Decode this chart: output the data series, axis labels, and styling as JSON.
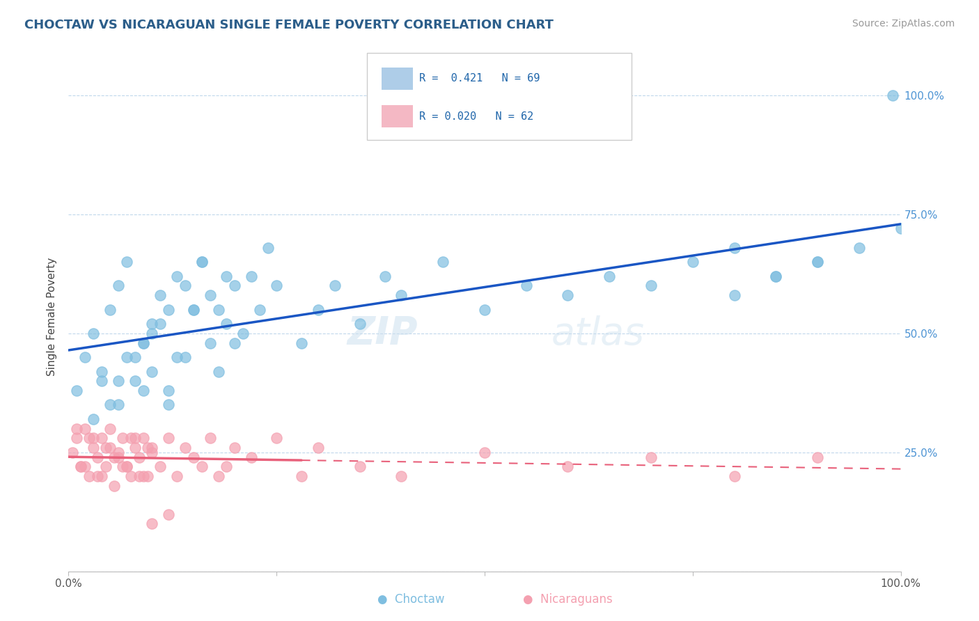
{
  "title": "CHOCTAW VS NICARAGUAN SINGLE FEMALE POVERTY CORRELATION CHART",
  "source": "Source: ZipAtlas.com",
  "ylabel": "Single Female Poverty",
  "y_tick_labels_right": [
    "25.0%",
    "50.0%",
    "75.0%",
    "100.0%"
  ],
  "legend_r1": "R =  0.421   N = 69",
  "legend_r2": "R = 0.020   N = 62",
  "legend_labels": [
    "Choctaw",
    "Nicaraguans"
  ],
  "choctaw_color": "#7fbee0",
  "nicaraguan_color": "#f4a0b0",
  "blue_line_color": "#1a56c4",
  "pink_line_color": "#e8607a",
  "background_color": "#ffffff",
  "watermark": "ZIPatlas",
  "choctaw_x": [
    1,
    2,
    3,
    4,
    5,
    6,
    7,
    8,
    9,
    10,
    11,
    12,
    13,
    14,
    15,
    16,
    17,
    18,
    19,
    20,
    5,
    8,
    10,
    12,
    14,
    16,
    18,
    20,
    22,
    24,
    6,
    9,
    11,
    13,
    15,
    17,
    19,
    21,
    23,
    25,
    28,
    30,
    32,
    35,
    38,
    40,
    45,
    50,
    55,
    60,
    65,
    70,
    75,
    80,
    85,
    90,
    95,
    80,
    85,
    90,
    3,
    4,
    6,
    7,
    9,
    10,
    12,
    99,
    100
  ],
  "choctaw_y": [
    38,
    45,
    50,
    42,
    55,
    60,
    65,
    40,
    48,
    52,
    58,
    35,
    62,
    45,
    55,
    65,
    48,
    42,
    52,
    60,
    35,
    45,
    50,
    55,
    60,
    65,
    55,
    48,
    62,
    68,
    40,
    48,
    52,
    45,
    55,
    58,
    62,
    50,
    55,
    60,
    48,
    55,
    60,
    52,
    62,
    58,
    65,
    55,
    60,
    58,
    62,
    60,
    65,
    68,
    62,
    65,
    68,
    58,
    62,
    65,
    32,
    40,
    35,
    45,
    38,
    42,
    38,
    100,
    72
  ],
  "nicaraguan_x": [
    0.5,
    1,
    1.5,
    2,
    2.5,
    3,
    3.5,
    4,
    4.5,
    5,
    5.5,
    6,
    6.5,
    7,
    7.5,
    8,
    8.5,
    9,
    9.5,
    10,
    1,
    2,
    3,
    4,
    5,
    6,
    7,
    8,
    9,
    10,
    1.5,
    2.5,
    3.5,
    4.5,
    5.5,
    6.5,
    7.5,
    8.5,
    9.5,
    11,
    12,
    13,
    14,
    15,
    16,
    17,
    18,
    19,
    20,
    22,
    25,
    28,
    30,
    35,
    40,
    50,
    60,
    70,
    80,
    90,
    10,
    12
  ],
  "nicaraguan_y": [
    25,
    28,
    22,
    30,
    20,
    26,
    24,
    28,
    22,
    30,
    18,
    25,
    28,
    22,
    20,
    26,
    24,
    28,
    20,
    25,
    30,
    22,
    28,
    20,
    26,
    24,
    22,
    28,
    20,
    26,
    22,
    28,
    20,
    26,
    24,
    22,
    28,
    20,
    26,
    22,
    28,
    20,
    26,
    24,
    22,
    28,
    20,
    22,
    26,
    24,
    28,
    20,
    26,
    22,
    20,
    25,
    22,
    24,
    20,
    24,
    10,
    12
  ]
}
